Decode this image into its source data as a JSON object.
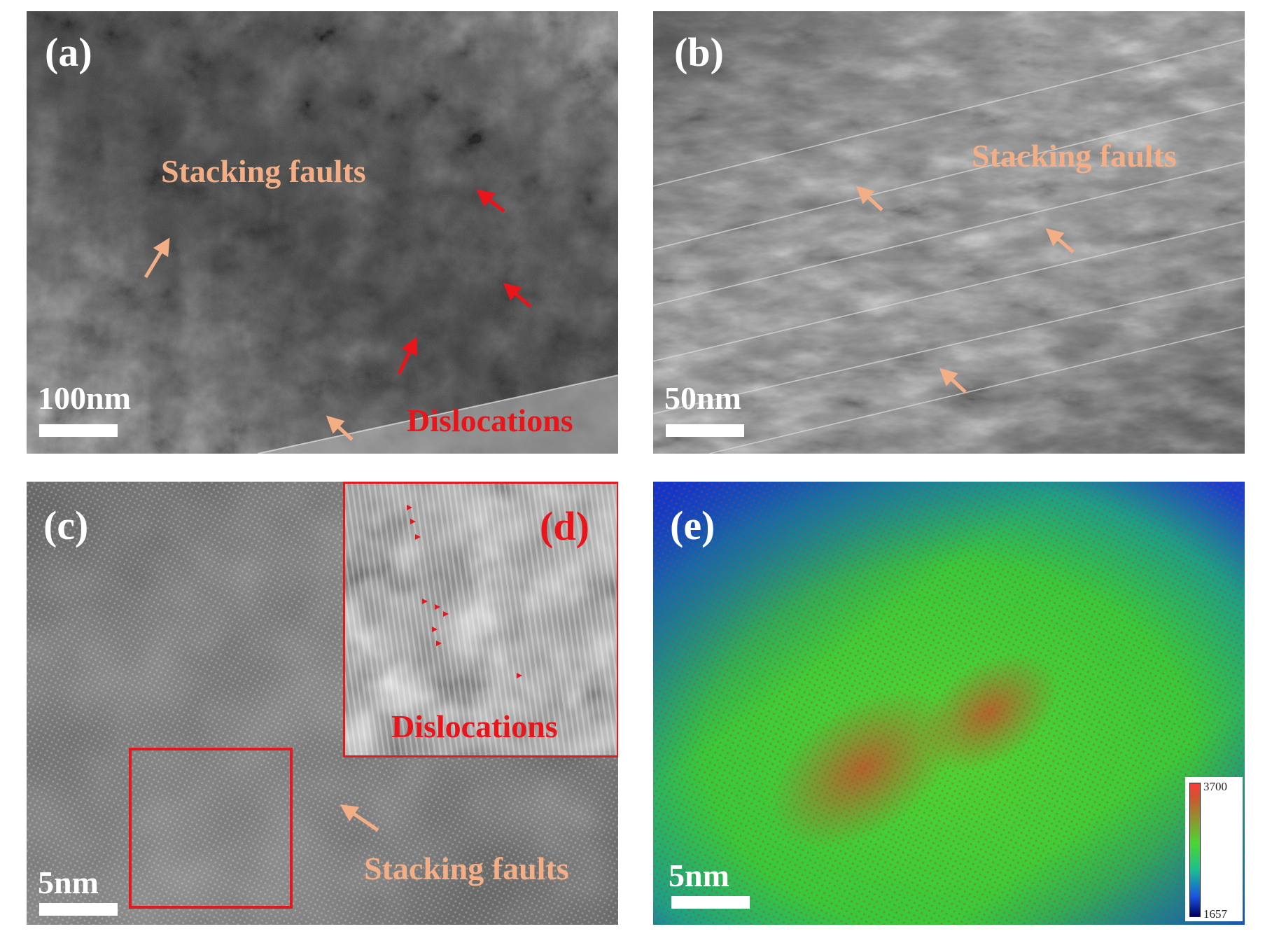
{
  "panels": {
    "a": {
      "label": "(a)",
      "stacking_faults": "Stacking faults",
      "dislocations": "Dislocations",
      "scale": "100nm"
    },
    "b": {
      "label": "(b)",
      "stacking_faults": "Stacking faults",
      "scale": "50nm"
    },
    "c": {
      "label": "(c)",
      "stacking_faults": "Stacking faults",
      "scale": "5nm"
    },
    "d": {
      "label": "(d)",
      "dislocations": "Dislocations"
    },
    "e": {
      "label": "(e)",
      "scale": "5nm",
      "colorbar": {
        "max": "3700",
        "min": "1657"
      }
    }
  },
  "colors": {
    "stacking_fault_annotation": "#f4ae86",
    "dislocation_annotation": "#e8151b",
    "inset_frame": "#e3191e",
    "scale_bar": "#ffffff"
  }
}
